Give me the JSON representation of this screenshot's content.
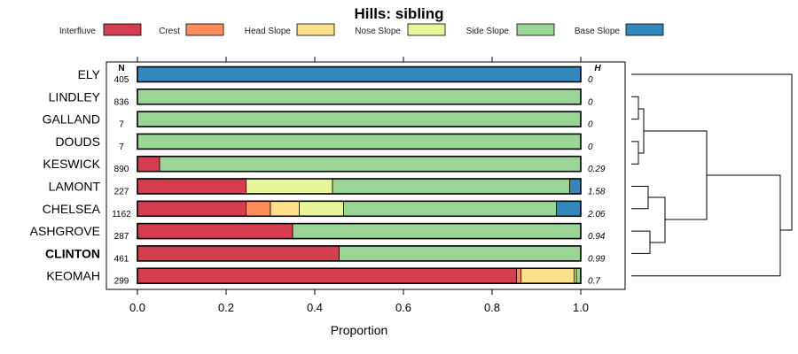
{
  "chart_data": {
    "type": "bar",
    "orientation": "horizontal",
    "stacked": true,
    "title": "Hills: sibling",
    "xlabel": "Proportion",
    "xlim": [
      0,
      1
    ],
    "xticks": [
      "0.0",
      "0.2",
      "0.4",
      "0.6",
      "0.8",
      "1.0"
    ],
    "n_header": "N",
    "h_header": "H",
    "legend": [
      {
        "name": "Interfluve",
        "color": "#D53E4F"
      },
      {
        "name": "Crest",
        "color": "#FC8D59"
      },
      {
        "name": "Head Slope",
        "color": "#FEE08B"
      },
      {
        "name": "Nose Slope",
        "color": "#E6F598"
      },
      {
        "name": "Side Slope",
        "color": "#99D594"
      },
      {
        "name": "Base Slope",
        "color": "#3288BD"
      }
    ],
    "rows": [
      {
        "label": "ELY",
        "n": "405",
        "h": "0",
        "bold": false,
        "values": [
          0,
          0,
          0,
          0,
          0,
          1.0
        ]
      },
      {
        "label": "LINDLEY",
        "n": "836",
        "h": "0",
        "bold": false,
        "values": [
          0,
          0,
          0,
          0,
          1.0,
          0
        ]
      },
      {
        "label": "GALLAND",
        "n": "7",
        "h": "0",
        "bold": false,
        "values": [
          0,
          0,
          0,
          0,
          1.0,
          0
        ]
      },
      {
        "label": "DOUDS",
        "n": "7",
        "h": "0",
        "bold": false,
        "values": [
          0,
          0,
          0,
          0,
          1.0,
          0
        ]
      },
      {
        "label": "KESWICK",
        "n": "890",
        "h": "0.29",
        "bold": false,
        "values": [
          0.05,
          0,
          0,
          0,
          0.95,
          0
        ]
      },
      {
        "label": "LAMONT",
        "n": "227",
        "h": "1.58",
        "bold": false,
        "values": [
          0.245,
          0,
          0,
          0.195,
          0.535,
          0.025
        ]
      },
      {
        "label": "CHELSEA",
        "n": "1162",
        "h": "2.06",
        "bold": false,
        "values": [
          0.245,
          0.055,
          0.065,
          0.1,
          0.48,
          0.055
        ]
      },
      {
        "label": "ASHGROVE",
        "n": "287",
        "h": "0.94",
        "bold": false,
        "values": [
          0.35,
          0,
          0,
          0,
          0.65,
          0
        ]
      },
      {
        "label": "CLINTON",
        "n": "461",
        "h": "0.99",
        "bold": true,
        "values": [
          0.455,
          0,
          0,
          0,
          0.545,
          0
        ]
      },
      {
        "label": "KEOMAH",
        "n": "299",
        "h": "0.7",
        "bold": false,
        "values": [
          0.855,
          0.01,
          0.12,
          0.005,
          0.01,
          0
        ]
      }
    ]
  }
}
